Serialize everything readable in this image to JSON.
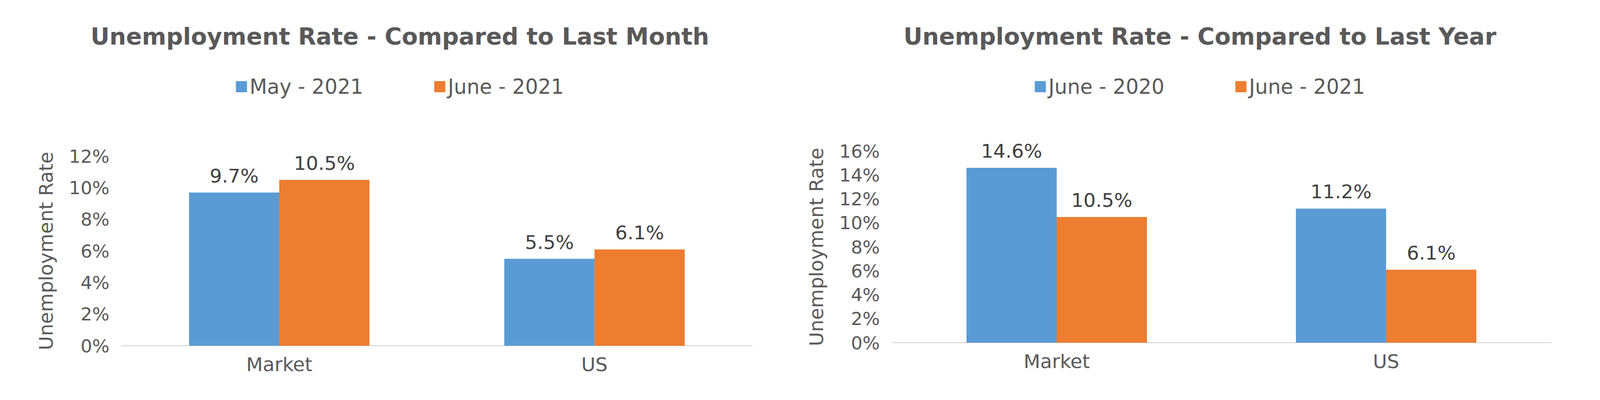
{
  "chart_data": [
    {
      "type": "bar",
      "title": "Unemployment Rate - Compared to Last Month",
      "y_label": "Unemployment Rate",
      "categories": [
        "Market",
        "US"
      ],
      "series": [
        {
          "name": "May - 2021",
          "color": "#5b9bd5",
          "values": [
            9.7,
            5.5
          ],
          "value_labels": [
            "9.7%",
            "5.5%"
          ]
        },
        {
          "name": "June - 2021",
          "color": "#ed7d31",
          "values": [
            10.5,
            6.1
          ],
          "value_labels": [
            "10.5%",
            "6.1%"
          ]
        }
      ],
      "ylim": [
        0,
        12
      ],
      "yticks": [
        {
          "value": 0,
          "label": "0%"
        },
        {
          "value": 2,
          "label": "2%"
        },
        {
          "value": 4,
          "label": "4%"
        },
        {
          "value": 6,
          "label": "6%"
        },
        {
          "value": 8,
          "label": "8%"
        },
        {
          "value": 10,
          "label": "10%"
        },
        {
          "value": 12,
          "label": "12%"
        }
      ],
      "grid": false,
      "legend": "top",
      "data_labels": true
    },
    {
      "type": "bar",
      "title": "Unemployment Rate - Compared to Last Year",
      "y_label": "Unemployment Rate",
      "categories": [
        "Market",
        "US"
      ],
      "series": [
        {
          "name": "June - 2020",
          "color": "#5b9bd5",
          "values": [
            14.6,
            11.2
          ],
          "value_labels": [
            "14.6%",
            "11.2%"
          ]
        },
        {
          "name": "June - 2021",
          "color": "#ed7d31",
          "values": [
            10.5,
            6.1
          ],
          "value_labels": [
            "10.5%",
            "6.1%"
          ]
        }
      ],
      "ylim": [
        0,
        16
      ],
      "yticks": [
        {
          "value": 0,
          "label": "0%"
        },
        {
          "value": 2,
          "label": "2%"
        },
        {
          "value": 4,
          "label": "4%"
        },
        {
          "value": 6,
          "label": "6%"
        },
        {
          "value": 8,
          "label": "8%"
        },
        {
          "value": 10,
          "label": "10%"
        },
        {
          "value": 12,
          "label": "12%"
        },
        {
          "value": 14,
          "label": "14%"
        },
        {
          "value": 16,
          "label": "16%"
        }
      ],
      "grid": false,
      "legend": "top",
      "data_labels": true
    }
  ]
}
